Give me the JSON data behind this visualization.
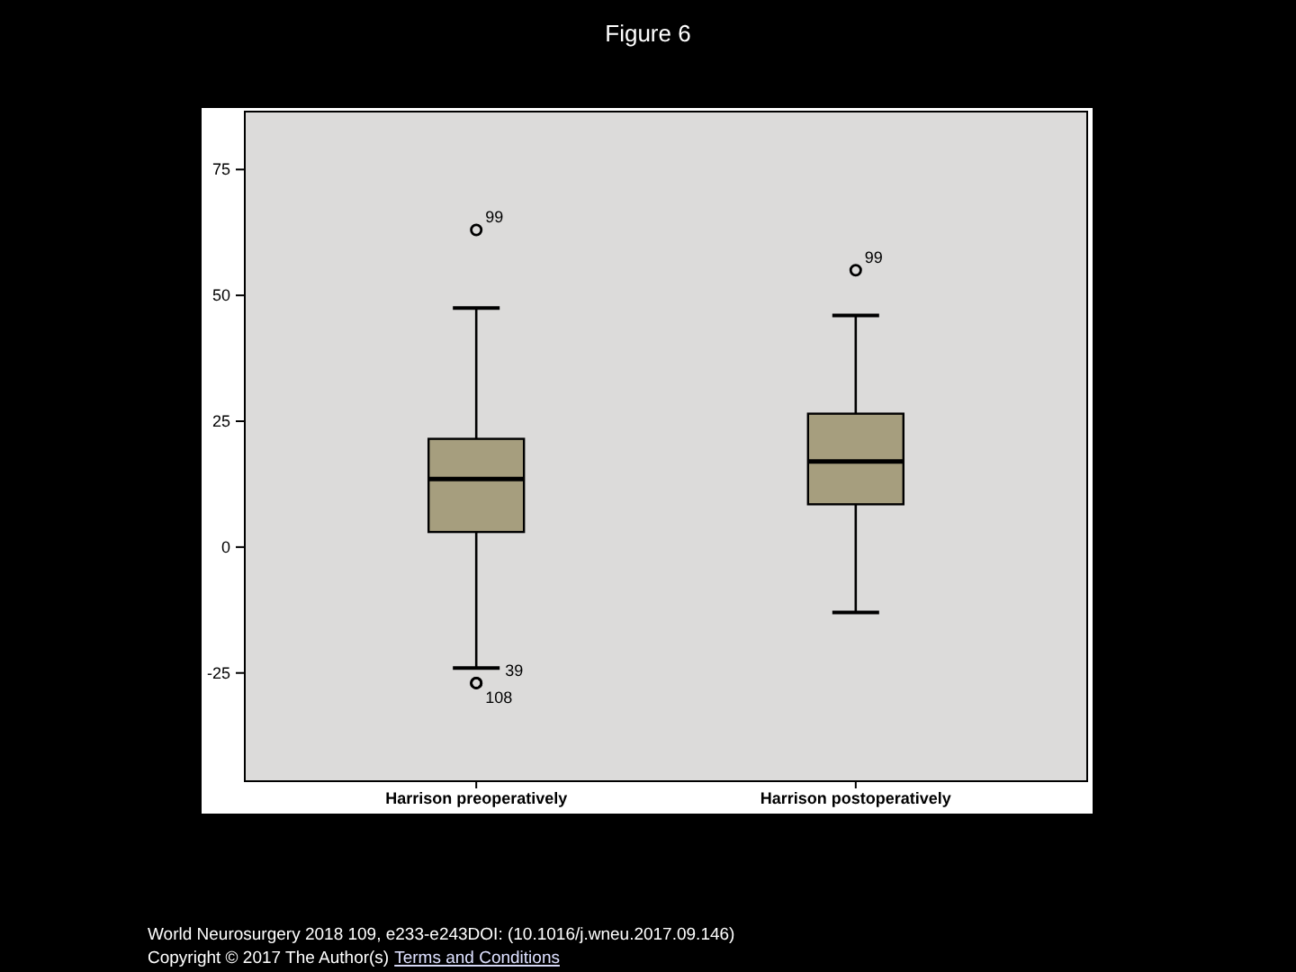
{
  "chart_data": {
    "type": "box",
    "title": "Figure 6",
    "categories": [
      "Harrison preoperatively",
      "Harrison postoperatively"
    ],
    "boxes": [
      {
        "low": -24,
        "q1": 3,
        "median": 13.5,
        "q3": 21.5,
        "high": 47.5,
        "outliers": [
          63,
          -27,
          -27
        ]
      },
      {
        "low": -13,
        "q1": 8.5,
        "median": 17,
        "q3": 26.5,
        "high": 46,
        "outliers": [
          55
        ]
      }
    ],
    "color": "#a69e7e",
    "ylim": [
      -46.5,
      86.5
    ],
    "yticks": [
      -25,
      0,
      25,
      50,
      75
    ],
    "annotations": [
      "99",
      "39",
      "108",
      "99",
      "World Neurosurgery 2018 109, e233-e243DOI: (10.1016/j.wneu.2017.09.146)",
      "Copyright © 2017 The Author(s)",
      "Terms and Conditions"
    ]
  }
}
